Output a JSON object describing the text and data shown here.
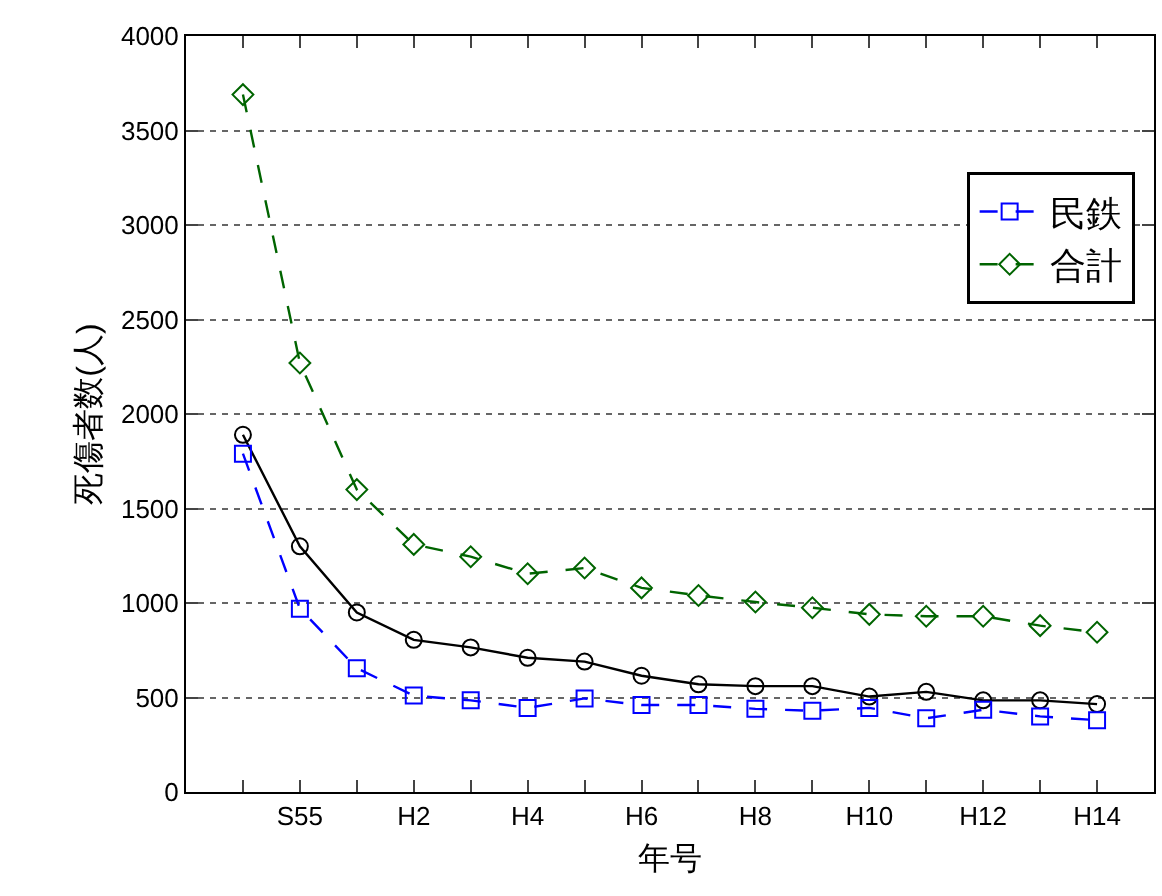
{
  "chart_data": {
    "type": "line",
    "xlabel": "年号",
    "ylabel": "死傷者数(人)",
    "categories": [
      null,
      "S55",
      null,
      "H2",
      null,
      "H4",
      null,
      "H6",
      null,
      "H8",
      null,
      "H10",
      null,
      "H12",
      null,
      "H14"
    ],
    "series": [
      {
        "color": "#000000",
        "line_style": "solid",
        "marker": "circle",
        "values": [
          1890,
          1300,
          950,
          805,
          765,
          710,
          690,
          615,
          570,
          560,
          560,
          505,
          530,
          485,
          485,
          465
        ]
      },
      {
        "name": "民鉄",
        "color": "#0000ff",
        "line_style": "dashed",
        "marker": "square",
        "values": [
          1790,
          970,
          655,
          510,
          485,
          445,
          495,
          460,
          460,
          440,
          430,
          445,
          390,
          435,
          400,
          380
        ]
      },
      {
        "name": "合計",
        "color": "#006400",
        "line_style": "dashed",
        "marker": "diamond",
        "values": [
          3690,
          2270,
          1600,
          1310,
          1245,
          1155,
          1185,
          1080,
          1040,
          1005,
          975,
          940,
          930,
          930,
          880,
          845
        ]
      }
    ],
    "ylim": [
      0,
      4000
    ],
    "yticks": [
      0,
      500,
      1000,
      1500,
      2000,
      2500,
      3000,
      3500,
      4000
    ],
    "grid": "y",
    "legend": "top right"
  }
}
